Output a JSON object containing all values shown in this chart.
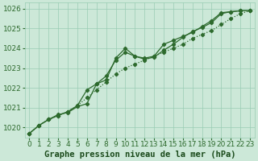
{
  "x": [
    0,
    1,
    2,
    3,
    4,
    5,
    6,
    7,
    8,
    9,
    10,
    11,
    12,
    13,
    14,
    15,
    16,
    17,
    18,
    19,
    20,
    21,
    22,
    23
  ],
  "line1": [
    1019.7,
    1020.1,
    1020.4,
    1020.6,
    1020.8,
    1021.1,
    1021.9,
    1022.2,
    1022.6,
    1023.4,
    1023.8,
    1023.6,
    1023.5,
    1023.6,
    1024.2,
    1024.4,
    1024.6,
    1024.8,
    1025.1,
    1025.4,
    1025.8,
    1025.85,
    1025.9,
    1025.9
  ],
  "line2": [
    1019.7,
    1020.1,
    1020.4,
    1020.65,
    1020.75,
    1021.05,
    1021.2,
    1022.2,
    1022.4,
    1023.5,
    1024.0,
    1023.6,
    1023.45,
    1023.55,
    1023.9,
    1024.2,
    1024.55,
    1024.85,
    1025.05,
    1025.3,
    1025.75,
    1025.85,
    1025.9,
    1025.9
  ],
  "line_dotted": [
    1019.7,
    1020.1,
    1020.4,
    1020.6,
    1020.8,
    1021.1,
    1021.5,
    1021.9,
    1022.3,
    1022.7,
    1023.0,
    1023.2,
    1023.4,
    1023.6,
    1023.8,
    1024.0,
    1024.2,
    1024.5,
    1024.7,
    1024.9,
    1025.2,
    1025.5,
    1025.75,
    1025.9
  ],
  "ylim": [
    1019.5,
    1026.3
  ],
  "yticks": [
    1020,
    1021,
    1022,
    1023,
    1024,
    1025,
    1026
  ],
  "xlim": [
    -0.5,
    23.5
  ],
  "xticks": [
    0,
    1,
    2,
    3,
    4,
    5,
    6,
    7,
    8,
    9,
    10,
    11,
    12,
    13,
    14,
    15,
    16,
    17,
    18,
    19,
    20,
    21,
    22,
    23
  ],
  "line_color": "#2d6a2d",
  "bg_color": "#cce8d8",
  "grid_color": "#99ccb3",
  "xlabel": "Graphe pression niveau de la mer (hPa)",
  "xlabel_fontsize": 7.5,
  "xlabel_color": "#1a4a1a",
  "tick_fontsize": 6.5,
  "marker": "D",
  "marker_size": 2.2,
  "line_width": 0.9
}
